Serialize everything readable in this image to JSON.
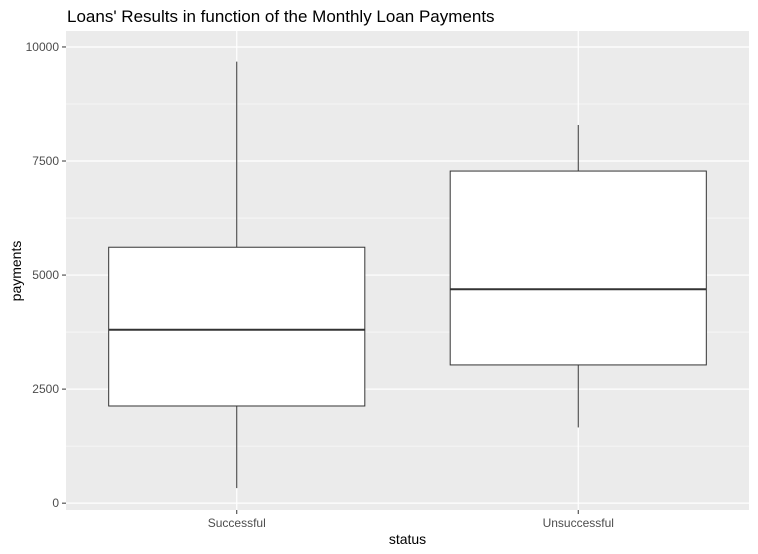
{
  "chart_data": {
    "type": "boxplot",
    "title": "Loans' Results in function of the Monthly Loan Payments",
    "xlabel": "status",
    "ylabel": "payments",
    "ylim": [
      -150,
      10350
    ],
    "y_ticks": [
      0,
      2500,
      5000,
      7500,
      10000
    ],
    "y_tick_labels": [
      "0",
      "2500",
      "5000",
      "7500",
      "10000"
    ],
    "grid": true,
    "legend": "none",
    "categories": [
      "Successful",
      "Unsuccessful"
    ],
    "boxes": [
      {
        "category": "Successful",
        "min": 330,
        "q1": 2130,
        "median": 3800,
        "q3": 5610,
        "max": 9680
      },
      {
        "category": "Unsuccessful",
        "min": 1660,
        "q1": 3030,
        "median": 4690,
        "q3": 7280,
        "max": 8290
      }
    ],
    "colors": {
      "panel": "#ebebeb",
      "grid": "#ffffff",
      "box_fill": "#ffffff",
      "box_stroke": "#333333",
      "tick": "#333333"
    }
  }
}
